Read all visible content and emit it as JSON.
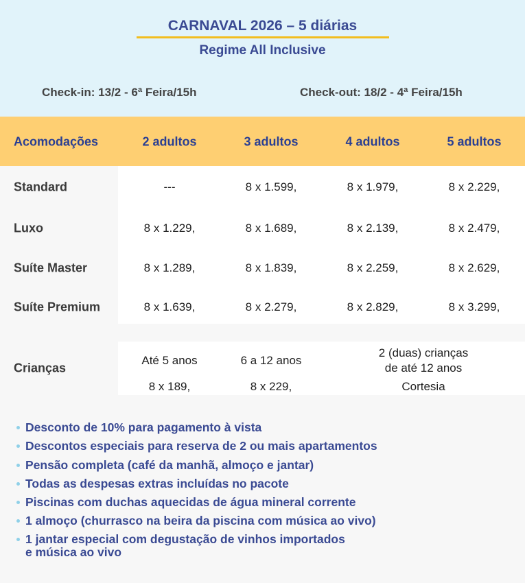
{
  "title": "CARNAVAL 2026 – 5 diárias",
  "subtitle": "Regime All Inclusive",
  "checkin": "Check-in: 13/2 - 6ª Feira/15h",
  "checkout": "Check-out: 18/2 - 4ª Feira/15h",
  "colors": {
    "top_bg": "#e1f3fa",
    "header_bg": "#fecf72",
    "accent": "#3a4a93",
    "underline": "#f2bd1e"
  },
  "table": {
    "headers": [
      "Acomodações",
      "2 adultos",
      "3 adultos",
      "4 adultos",
      "5 adultos"
    ],
    "rows": [
      {
        "label": "Standard",
        "values": [
          "---",
          "8 x 1.599,",
          "8 x 1.979,",
          "8 x 2.229,"
        ]
      },
      {
        "label": "Luxo",
        "values": [
          "8 x 1.229,",
          "8 x 1.689,",
          "8 x 2.139,",
          "8 x 2.479,"
        ]
      },
      {
        "label": "Suíte Master",
        "values": [
          "8 x 1.289,",
          "8 x 1.839,",
          "8 x 2.259,",
          "8 x 2.629,"
        ]
      },
      {
        "label": "Suíte Premium",
        "values": [
          "8 x 1.639,",
          "8 x 2.279,",
          "8 x 2.829,",
          "8 x 3.299,"
        ]
      }
    ]
  },
  "children": {
    "label": "Crianças",
    "groups": [
      {
        "age": "Até 5 anos",
        "price": "8 x 189,"
      },
      {
        "age": "6 a 12 anos",
        "price": "8 x 229,"
      },
      {
        "age_line1": "2 (duas) crianças",
        "age_line2": "de até 12 anos",
        "price": "Cortesia"
      }
    ]
  },
  "benefits": [
    "Desconto de 10% para pagamento à vista",
    "Descontos especiais para reserva de 2 ou mais apartamentos",
    "Pensão completa (café da manhã, almoço e jantar)",
    "Todas as despesas extras incluídas no pacote",
    "Piscinas com duchas aquecidas de água mineral corrente",
    "1 almoço (churrasco na beira da piscina com música ao vivo)",
    "1 jantar especial com degustação de vinhos importados",
    "e música ao vivo"
  ]
}
